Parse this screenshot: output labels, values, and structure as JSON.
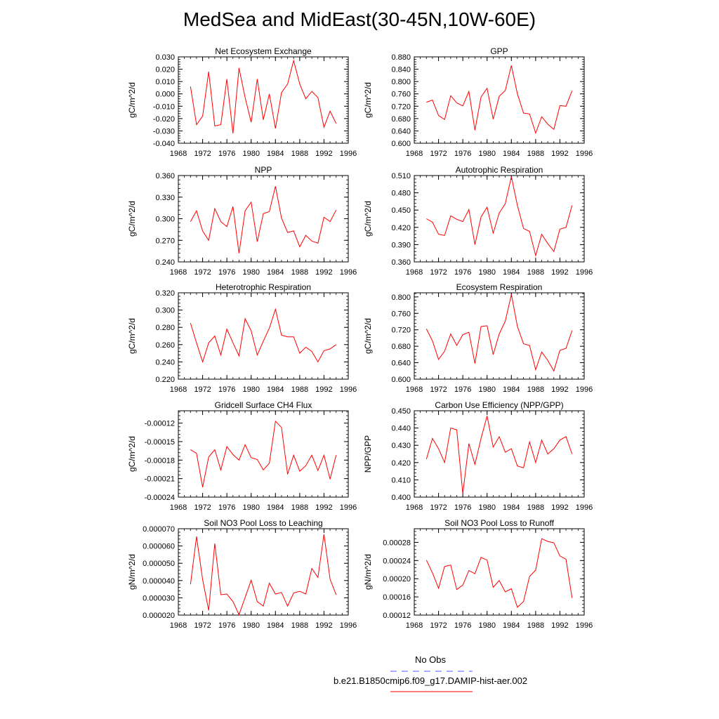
{
  "figure": {
    "title": "MedSea and MidEast(30-45N,10W-60E)",
    "legend": [
      {
        "label": "No Obs",
        "color": "#5555ff",
        "style": "dashed"
      },
      {
        "label": "b.e21.B1850cmip6.f09_g17.DAMIP-hist-aer.002",
        "color": "#ff0000",
        "style": "solid"
      }
    ],
    "series_color": "#ff0000"
  },
  "chart_data": [
    {
      "type": "line",
      "title": "Net Ecosystem Exchange",
      "ylabel": "gC/m^2/d",
      "xlim": [
        1968,
        1996
      ],
      "xticks": [
        1968,
        1972,
        1976,
        1980,
        1984,
        1988,
        1992,
        1996
      ],
      "ylim": [
        -0.04,
        0.03
      ],
      "yticks": [
        -0.04,
        -0.03,
        -0.02,
        -0.01,
        0.0,
        0.01,
        0.02,
        0.03
      ],
      "ytick_labels": [
        "-0.040",
        "-0.030",
        "-0.020",
        "-0.010",
        "0.000",
        "0.010",
        "0.020",
        "0.030"
      ],
      "x": [
        1970,
        1971,
        1972,
        1973,
        1974,
        1975,
        1976,
        1977,
        1978,
        1979,
        1980,
        1981,
        1982,
        1983,
        1984,
        1985,
        1986,
        1987,
        1988,
        1989,
        1990,
        1991,
        1992,
        1993,
        1994
      ],
      "values": [
        0.006,
        -0.025,
        -0.018,
        0.018,
        -0.026,
        -0.025,
        0.012,
        -0.032,
        0.021,
        -0.003,
        -0.023,
        0.012,
        -0.021,
        0.0,
        -0.028,
        0.001,
        0.008,
        0.027,
        0.008,
        -0.004,
        0.002,
        -0.003,
        -0.027,
        -0.014,
        -0.024
      ]
    },
    {
      "type": "line",
      "title": "GPP",
      "ylabel": "gC/m^2/d",
      "xlim": [
        1968,
        1996
      ],
      "xticks": [
        1968,
        1972,
        1976,
        1980,
        1984,
        1988,
        1992,
        1996
      ],
      "ylim": [
        0.6,
        0.88
      ],
      "yticks": [
        0.6,
        0.64,
        0.68,
        0.72,
        0.76,
        0.8,
        0.84,
        0.88
      ],
      "ytick_labels": [
        "0.600",
        "0.640",
        "0.680",
        "0.720",
        "0.760",
        "0.800",
        "0.840",
        "0.880"
      ],
      "x": [
        1970,
        1971,
        1972,
        1973,
        1974,
        1975,
        1976,
        1977,
        1978,
        1979,
        1980,
        1981,
        1982,
        1983,
        1984,
        1985,
        1986,
        1987,
        1988,
        1989,
        1990,
        1991,
        1992,
        1993,
        1994
      ],
      "values": [
        0.733,
        0.74,
        0.69,
        0.677,
        0.754,
        0.731,
        0.721,
        0.768,
        0.642,
        0.75,
        0.778,
        0.678,
        0.752,
        0.771,
        0.852,
        0.76,
        0.698,
        0.695,
        0.633,
        0.686,
        0.662,
        0.645,
        0.722,
        0.72,
        0.77
      ]
    },
    {
      "type": "line",
      "title": "NPP",
      "ylabel": "gC/m^2/d",
      "xlim": [
        1968,
        1996
      ],
      "xticks": [
        1968,
        1972,
        1976,
        1980,
        1984,
        1988,
        1992,
        1996
      ],
      "ylim": [
        0.24,
        0.36
      ],
      "yticks": [
        0.24,
        0.27,
        0.3,
        0.33,
        0.36
      ],
      "ytick_labels": [
        "0.240",
        "0.270",
        "0.300",
        "0.330",
        "0.360"
      ],
      "x": [
        1970,
        1971,
        1972,
        1973,
        1974,
        1975,
        1976,
        1977,
        1978,
        1979,
        1980,
        1981,
        1982,
        1983,
        1984,
        1985,
        1986,
        1987,
        1988,
        1989,
        1990,
        1991,
        1992,
        1993,
        1994
      ],
      "values": [
        0.296,
        0.311,
        0.283,
        0.27,
        0.314,
        0.296,
        0.289,
        0.317,
        0.252,
        0.311,
        0.323,
        0.268,
        0.307,
        0.31,
        0.345,
        0.301,
        0.281,
        0.283,
        0.261,
        0.277,
        0.269,
        0.266,
        0.302,
        0.296,
        0.312
      ]
    },
    {
      "type": "line",
      "title": "Autotrophic Respiration",
      "ylabel": "gC/m^2/d",
      "xlim": [
        1968,
        1996
      ],
      "xticks": [
        1968,
        1972,
        1976,
        1980,
        1984,
        1988,
        1992,
        1996
      ],
      "ylim": [
        0.36,
        0.51
      ],
      "yticks": [
        0.36,
        0.39,
        0.42,
        0.45,
        0.48,
        0.51
      ],
      "ytick_labels": [
        "0.360",
        "0.390",
        "0.420",
        "0.450",
        "0.480",
        "0.510"
      ],
      "x": [
        1970,
        1971,
        1972,
        1973,
        1974,
        1975,
        1976,
        1977,
        1978,
        1979,
        1980,
        1981,
        1982,
        1983,
        1984,
        1985,
        1986,
        1987,
        1988,
        1989,
        1990,
        1991,
        1992,
        1993,
        1994
      ],
      "values": [
        0.435,
        0.429,
        0.408,
        0.406,
        0.44,
        0.434,
        0.43,
        0.451,
        0.39,
        0.438,
        0.455,
        0.41,
        0.445,
        0.461,
        0.508,
        0.458,
        0.418,
        0.413,
        0.371,
        0.408,
        0.392,
        0.378,
        0.417,
        0.42,
        0.458
      ]
    },
    {
      "type": "line",
      "title": "Heterotrophic Respiration",
      "ylabel": "gC/m^2/d",
      "xlim": [
        1968,
        1996
      ],
      "xticks": [
        1968,
        1972,
        1976,
        1980,
        1984,
        1988,
        1992,
        1996
      ],
      "ylim": [
        0.22,
        0.32
      ],
      "yticks": [
        0.22,
        0.24,
        0.26,
        0.28,
        0.3,
        0.32
      ],
      "ytick_labels": [
        "0.220",
        "0.240",
        "0.260",
        "0.280",
        "0.300",
        "0.320"
      ],
      "x": [
        1970,
        1971,
        1972,
        1973,
        1974,
        1975,
        1976,
        1977,
        1978,
        1979,
        1980,
        1981,
        1982,
        1983,
        1984,
        1985,
        1986,
        1987,
        1988,
        1989,
        1990,
        1991,
        1992,
        1993,
        1994
      ],
      "values": [
        0.285,
        0.262,
        0.24,
        0.262,
        0.27,
        0.248,
        0.278,
        0.262,
        0.247,
        0.29,
        0.276,
        0.248,
        0.264,
        0.279,
        0.301,
        0.271,
        0.269,
        0.269,
        0.25,
        0.257,
        0.252,
        0.24,
        0.253,
        0.255,
        0.26
      ]
    },
    {
      "type": "line",
      "title": "Ecosystem Respiration",
      "ylabel": "gC/m^2/d",
      "xlim": [
        1968,
        1996
      ],
      "xticks": [
        1968,
        1972,
        1976,
        1980,
        1984,
        1988,
        1992,
        1996
      ],
      "ylim": [
        0.6,
        0.81
      ],
      "yticks": [
        0.6,
        0.64,
        0.68,
        0.72,
        0.76,
        0.8
      ],
      "ytick_labels": [
        "0.600",
        "0.640",
        "0.680",
        "0.720",
        "0.760",
        "0.800"
      ],
      "x": [
        1970,
        1971,
        1972,
        1973,
        1974,
        1975,
        1976,
        1977,
        1978,
        1979,
        1980,
        1981,
        1982,
        1983,
        1984,
        1985,
        1986,
        1987,
        1988,
        1989,
        1990,
        1991,
        1992,
        1993,
        1994
      ],
      "values": [
        0.722,
        0.693,
        0.648,
        0.668,
        0.71,
        0.682,
        0.708,
        0.714,
        0.638,
        0.728,
        0.73,
        0.66,
        0.71,
        0.741,
        0.806,
        0.728,
        0.686,
        0.682,
        0.623,
        0.666,
        0.646,
        0.62,
        0.67,
        0.675,
        0.718
      ]
    },
    {
      "type": "line",
      "title": "Gridcell Surface CH4 Flux",
      "ylabel": "gC/m^2/d",
      "xlim": [
        1968,
        1996
      ],
      "xticks": [
        1968,
        1972,
        1976,
        1980,
        1984,
        1988,
        1992,
        1996
      ],
      "ylim": [
        -0.00024,
        -0.0001
      ],
      "yticks": [
        -0.00024,
        -0.00021,
        -0.00018,
        -0.00015,
        -0.00012
      ],
      "ytick_labels": [
        "-0.00024",
        "-0.00021",
        "-0.00018",
        "-0.00015",
        "-0.00012"
      ],
      "x": [
        1970,
        1971,
        1972,
        1973,
        1974,
        1975,
        1976,
        1977,
        1978,
        1979,
        1980,
        1981,
        1982,
        1983,
        1984,
        1985,
        1986,
        1987,
        1988,
        1989,
        1990,
        1991,
        1992,
        1993,
        1994
      ],
      "values": [
        -0.000163,
        -0.000169,
        -0.000224,
        -0.000175,
        -0.000163,
        -0.000196,
        -0.000158,
        -0.000171,
        -0.00018,
        -0.000155,
        -0.000176,
        -0.000179,
        -0.000196,
        -0.000185,
        -0.000117,
        -0.000127,
        -0.000203,
        -0.000172,
        -0.000198,
        -0.000189,
        -0.000172,
        -0.000197,
        -0.000172,
        -0.000211,
        -0.000172
      ]
    },
    {
      "type": "line",
      "title": "Carbon Use Efficiency (NPP/GPP)",
      "ylabel": "NPP/GPP",
      "xlim": [
        1968,
        1996
      ],
      "xticks": [
        1968,
        1972,
        1976,
        1980,
        1984,
        1988,
        1992,
        1996
      ],
      "ylim": [
        0.4,
        0.45
      ],
      "yticks": [
        0.4,
        0.41,
        0.42,
        0.43,
        0.44,
        0.45
      ],
      "ytick_labels": [
        "0.400",
        "0.410",
        "0.420",
        "0.430",
        "0.440",
        "0.450"
      ],
      "x": [
        1970,
        1971,
        1972,
        1973,
        1974,
        1975,
        1976,
        1977,
        1978,
        1979,
        1980,
        1981,
        1982,
        1983,
        1984,
        1985,
        1986,
        1987,
        1988,
        1989,
        1990,
        1991,
        1992,
        1993,
        1994
      ],
      "values": [
        0.422,
        0.434,
        0.428,
        0.42,
        0.44,
        0.439,
        0.402,
        0.431,
        0.419,
        0.434,
        0.447,
        0.429,
        0.435,
        0.426,
        0.428,
        0.418,
        0.417,
        0.432,
        0.42,
        0.433,
        0.425,
        0.428,
        0.433,
        0.435,
        0.425
      ]
    },
    {
      "type": "line",
      "title": "Soil NO3 Pool Loss to Leaching",
      "ylabel": "gN/m^2/d",
      "xlim": [
        1968,
        1996
      ],
      "xticks": [
        1968,
        1972,
        1976,
        1980,
        1984,
        1988,
        1992,
        1996
      ],
      "ylim": [
        2e-05,
        7e-05
      ],
      "yticks": [
        2e-05,
        3e-05,
        4e-05,
        5e-05,
        6e-05,
        7e-05
      ],
      "ytick_labels": [
        "0.000020",
        "0.000030",
        "0.000040",
        "0.000050",
        "0.000060",
        "0.000070"
      ],
      "x": [
        1970,
        1971,
        1972,
        1973,
        1974,
        1975,
        1976,
        1977,
        1978,
        1979,
        1980,
        1981,
        1982,
        1983,
        1984,
        1985,
        1986,
        1987,
        1988,
        1989,
        1990,
        1991,
        1992,
        1993,
        1994
      ],
      "values": [
        3.78e-05,
        6.55e-05,
        4.05e-05,
        2.27e-05,
        6.15e-05,
        3.18e-05,
        3.22e-05,
        2.78e-05,
        2.02e-05,
        3.02e-05,
        4.02e-05,
        2.78e-05,
        2.52e-05,
        3.85e-05,
        3.22e-05,
        3.31e-05,
        2.52e-05,
        3.28e-05,
        3.38e-05,
        3.22e-05,
        4.7e-05,
        4.18e-05,
        6.68e-05,
        4.08e-05,
        3.18e-05
      ]
    },
    {
      "type": "line",
      "title": "Soil NO3 Pool Loss to Runoff",
      "ylabel": "gN/m^2/d",
      "xlim": [
        1968,
        1996
      ],
      "xticks": [
        1968,
        1972,
        1976,
        1980,
        1984,
        1988,
        1992,
        1996
      ],
      "ylim": [
        0.00012,
        0.00031
      ],
      "yticks": [
        0.00012,
        0.00016,
        0.0002,
        0.00024,
        0.00028
      ],
      "ytick_labels": [
        "0.00012",
        "0.00016",
        "0.00020",
        "0.00024",
        "0.00028"
      ],
      "x": [
        1970,
        1971,
        1972,
        1973,
        1974,
        1975,
        1976,
        1977,
        1978,
        1979,
        1980,
        1981,
        1982,
        1983,
        1984,
        1985,
        1986,
        1987,
        1988,
        1989,
        1990,
        1991,
        1992,
        1993,
        1994
      ],
      "values": [
        0.000241,
        0.000213,
        0.000179,
        0.000227,
        0.00023,
        0.000176,
        0.000186,
        0.000218,
        0.000211,
        0.000247,
        0.000241,
        0.000181,
        0.000196,
        0.000171,
        0.000178,
        0.000137,
        0.00015,
        0.000205,
        0.000219,
        0.000288,
        0.000282,
        0.000279,
        0.00025,
        0.000243,
        0.000158
      ]
    }
  ]
}
